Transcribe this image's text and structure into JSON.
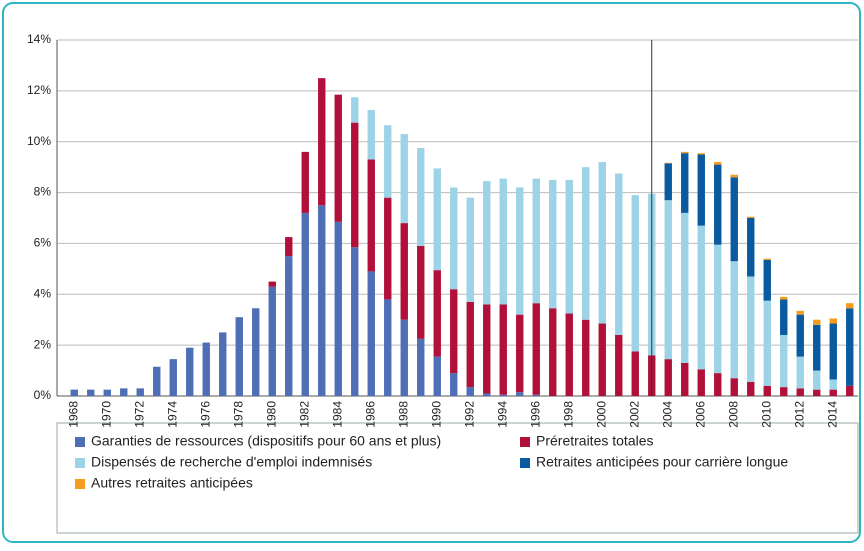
{
  "chart_data": {
    "type": "bar",
    "stacked": true,
    "categories": [
      "1968",
      null,
      "1970",
      null,
      "1972",
      null,
      "1974",
      null,
      "1976",
      null,
      "1978",
      null,
      "1980",
      null,
      "1982",
      null,
      "1984",
      null,
      "1986",
      null,
      "1988",
      null,
      "1990",
      null,
      "1992",
      null,
      "1994",
      null,
      "1996",
      null,
      "1998",
      null,
      "2000",
      null,
      "2002",
      null,
      "2004",
      null,
      "2006",
      null,
      "2008",
      null,
      "2010",
      null,
      "2012",
      null,
      "2014",
      null
    ],
    "series": [
      {
        "name": "Garanties de ressources (dispositifs pour 60 ans et plus)",
        "color": "#4e6fb5",
        "values": [
          0.25,
          0.25,
          0.25,
          0.3,
          0.3,
          1.15,
          1.45,
          1.9,
          2.1,
          2.5,
          3.1,
          3.45,
          4.3,
          5.5,
          7.2,
          7.5,
          6.85,
          5.85,
          4.9,
          3.8,
          3.0,
          2.25,
          1.55,
          0.9,
          0.35,
          0.1,
          0.05,
          0.15,
          0.05,
          0,
          0,
          0,
          0,
          0,
          0,
          0,
          0,
          0,
          0,
          0,
          0,
          0,
          0,
          0,
          0,
          0,
          0,
          0
        ]
      },
      {
        "name": "Préretraites totales",
        "color": "#b0103a",
        "values": [
          0,
          0,
          0,
          0,
          0,
          0,
          0,
          0,
          0,
          0,
          0,
          0,
          0.2,
          0.75,
          2.4,
          5.0,
          5.0,
          4.9,
          4.4,
          4.0,
          3.8,
          3.65,
          3.4,
          3.3,
          3.35,
          3.5,
          3.55,
          3.05,
          3.6,
          3.45,
          3.25,
          3.0,
          2.85,
          2.4,
          1.75,
          1.6,
          1.45,
          1.3,
          1.05,
          0.9,
          0.7,
          0.55,
          0.4,
          0.35,
          0.3,
          0.25,
          0.25,
          0.4
        ]
      },
      {
        "name": "Dispensés de recherche d'emploi indemnisés",
        "color": "#9dd3e6",
        "values": [
          0,
          0,
          0,
          0,
          0,
          0,
          0,
          0,
          0,
          0,
          0,
          0,
          0,
          0,
          0,
          0,
          0,
          1.0,
          1.95,
          2.85,
          3.5,
          3.85,
          4.0,
          4.0,
          4.1,
          4.85,
          4.95,
          5.0,
          4.9,
          5.05,
          5.25,
          6.0,
          6.35,
          6.35,
          6.15,
          6.35,
          6.25,
          5.9,
          5.65,
          5.05,
          4.6,
          4.15,
          3.35,
          2.05,
          1.25,
          0.75,
          0.4,
          0
        ]
      },
      {
        "name": "Retraites anticipées pour carrière longue",
        "color": "#0a5aa0",
        "values": [
          0,
          0,
          0,
          0,
          0,
          0,
          0,
          0,
          0,
          0,
          0,
          0,
          0,
          0,
          0,
          0,
          0,
          0,
          0,
          0,
          0,
          0,
          0,
          0,
          0,
          0,
          0,
          0,
          0,
          0,
          0,
          0,
          0,
          0,
          0,
          0,
          1.45,
          2.35,
          2.8,
          3.15,
          3.3,
          2.3,
          1.6,
          1.4,
          1.65,
          1.8,
          2.2,
          3.05
        ]
      },
      {
        "name": "Autres retraites anticipées",
        "color": "#f39c1d",
        "values": [
          0,
          0,
          0,
          0,
          0,
          0,
          0,
          0,
          0,
          0,
          0,
          0,
          0,
          0,
          0,
          0,
          0,
          0,
          0,
          0,
          0,
          0,
          0,
          0,
          0,
          0,
          0,
          0,
          0,
          0,
          0,
          0,
          0,
          0,
          0,
          0,
          0.02,
          0.05,
          0.05,
          0.1,
          0.1,
          0.05,
          0.05,
          0.1,
          0.15,
          0.2,
          0.2,
          0.2
        ]
      }
    ],
    "ylim": [
      0,
      14
    ],
    "yticks": [
      {
        "value": 0,
        "label": "0%"
      },
      {
        "value": 2,
        "label": "2%"
      },
      {
        "value": 4,
        "label": "4%"
      },
      {
        "value": 6,
        "label": "6%"
      },
      {
        "value": 8,
        "label": "8%"
      },
      {
        "value": 10,
        "label": "10%"
      },
      {
        "value": 12,
        "label": "12%"
      },
      {
        "value": 14,
        "label": "14%"
      }
    ],
    "grid": true
  }
}
